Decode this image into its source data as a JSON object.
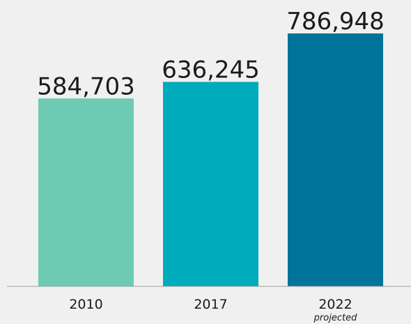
{
  "chart_data": {
    "type": "bar",
    "categories": [
      "2010",
      "2017",
      "2022"
    ],
    "values": [
      584703,
      636245,
      786948
    ],
    "value_labels": [
      "584,703",
      "636,245",
      "786,948"
    ],
    "category_notes": [
      "",
      "",
      "projected"
    ],
    "colors": [
      "#6dcbb3",
      "#00abbb",
      "#007399"
    ],
    "axis_color": "#a0a0a0",
    "background": "#f0f0f0",
    "title": "",
    "xlabel": "",
    "ylabel": "",
    "ylim": [
      0,
      800000
    ],
    "grid": false,
    "legend": "none"
  }
}
